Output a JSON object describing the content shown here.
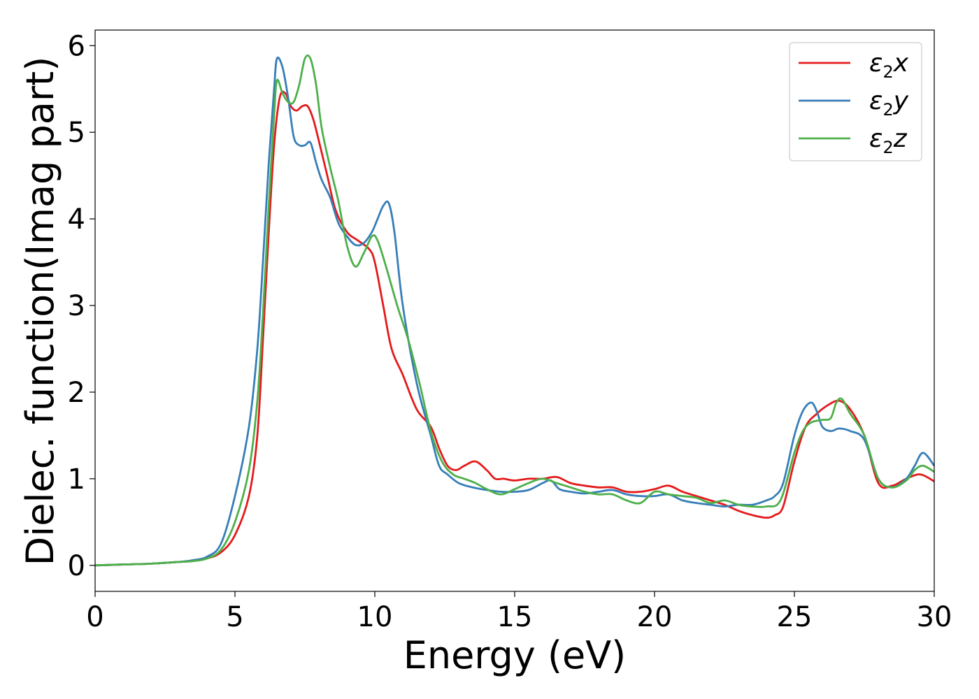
{
  "chart_data": {
    "type": "line",
    "title": "",
    "xlabel": "Energy (eV)",
    "ylabel": "Dielec. function(Imag part)",
    "xlim": [
      0,
      30
    ],
    "ylim": [
      -0.3,
      6.18
    ],
    "xticks": [
      "0",
      "5",
      "10",
      "15",
      "20",
      "25",
      "30"
    ],
    "yticks": [
      "0",
      "1",
      "2",
      "3",
      "4",
      "5",
      "6"
    ],
    "grid": false,
    "legend_position": "top-right",
    "series": [
      {
        "name": "ε2x",
        "legend_main": "ε",
        "legend_sub": "2",
        "legend_tail": "x",
        "color": "#e41a1c",
        "x": [
          0,
          1,
          2,
          3,
          3.5,
          4,
          4.5,
          5,
          5.5,
          5.8,
          6.0,
          6.2,
          6.4,
          6.6,
          6.8,
          7.0,
          7.2,
          7.4,
          7.6,
          7.8,
          8.0,
          8.3,
          8.6,
          9.0,
          9.4,
          9.8,
          10.0,
          10.3,
          10.6,
          11.0,
          11.5,
          12.0,
          12.3,
          12.6,
          12.9,
          13.2,
          13.6,
          14.0,
          14.3,
          14.6,
          15.0,
          15.5,
          16.0,
          16.5,
          17.0,
          17.5,
          18.0,
          18.5,
          19.0,
          19.5,
          20.0,
          20.5,
          21.0,
          21.5,
          22.0,
          22.5,
          23.0,
          23.5,
          24.0,
          24.3,
          24.6,
          25.0,
          25.4,
          25.8,
          26.2,
          26.6,
          27.0,
          27.5,
          28.0,
          28.5,
          29.0,
          29.5,
          30.0
        ],
        "y": [
          0.0,
          0.01,
          0.02,
          0.04,
          0.05,
          0.08,
          0.15,
          0.35,
          0.8,
          1.5,
          2.6,
          3.8,
          4.85,
          5.4,
          5.45,
          5.3,
          5.25,
          5.3,
          5.3,
          5.15,
          4.9,
          4.5,
          4.1,
          3.85,
          3.75,
          3.65,
          3.5,
          3.0,
          2.5,
          2.2,
          1.8,
          1.6,
          1.35,
          1.15,
          1.1,
          1.15,
          1.2,
          1.1,
          1.0,
          1.0,
          0.98,
          1.0,
          1.0,
          1.02,
          0.95,
          0.92,
          0.9,
          0.9,
          0.85,
          0.85,
          0.88,
          0.92,
          0.85,
          0.8,
          0.75,
          0.7,
          0.63,
          0.58,
          0.55,
          0.58,
          0.68,
          1.2,
          1.6,
          1.75,
          1.85,
          1.9,
          1.8,
          1.5,
          0.95,
          0.92,
          1.0,
          1.05,
          0.97
        ]
      },
      {
        "name": "ε2y",
        "legend_main": "ε",
        "legend_sub": "2",
        "legend_tail": "y",
        "color": "#377eb8",
        "x": [
          0,
          1,
          2,
          3,
          3.5,
          4,
          4.5,
          5,
          5.5,
          5.8,
          6.0,
          6.2,
          6.4,
          6.5,
          6.7,
          6.9,
          7.1,
          7.3,
          7.5,
          7.7,
          7.9,
          8.1,
          8.4,
          8.7,
          9.0,
          9.3,
          9.6,
          9.9,
          10.1,
          10.3,
          10.5,
          10.7,
          11.0,
          11.5,
          12.0,
          12.3,
          12.6,
          13.0,
          13.5,
          14.0,
          14.5,
          15.0,
          15.5,
          16.0,
          16.3,
          16.6,
          17.0,
          17.5,
          18.0,
          18.5,
          19.0,
          19.5,
          20.0,
          20.5,
          21.0,
          21.5,
          22.0,
          22.5,
          23.0,
          23.5,
          24.0,
          24.3,
          24.6,
          25.0,
          25.3,
          25.6,
          25.8,
          26.0,
          26.3,
          26.6,
          27.0,
          27.5,
          28.0,
          28.5,
          29.0,
          29.3,
          29.6,
          30.0
        ],
        "y": [
          0.0,
          0.01,
          0.02,
          0.04,
          0.06,
          0.1,
          0.25,
          0.8,
          1.6,
          2.5,
          3.5,
          4.6,
          5.5,
          5.85,
          5.75,
          5.4,
          4.95,
          4.85,
          4.85,
          4.88,
          4.65,
          4.45,
          4.25,
          3.95,
          3.8,
          3.7,
          3.72,
          3.85,
          4.0,
          4.15,
          4.18,
          3.85,
          3.0,
          2.1,
          1.5,
          1.15,
          1.05,
          0.95,
          0.9,
          0.87,
          0.85,
          0.85,
          0.87,
          0.95,
          0.98,
          0.88,
          0.85,
          0.83,
          0.85,
          0.87,
          0.82,
          0.8,
          0.8,
          0.82,
          0.75,
          0.72,
          0.7,
          0.68,
          0.7,
          0.7,
          0.75,
          0.8,
          0.95,
          1.5,
          1.78,
          1.88,
          1.78,
          1.6,
          1.55,
          1.58,
          1.55,
          1.45,
          1.0,
          0.9,
          1.0,
          1.15,
          1.3,
          1.15
        ]
      },
      {
        "name": "ε2z",
        "legend_main": "ε",
        "legend_sub": "2",
        "legend_tail": "z",
        "color": "#4daf4a",
        "x": [
          0,
          1,
          2,
          3,
          3.5,
          4,
          4.5,
          5,
          5.5,
          5.8,
          6.0,
          6.2,
          6.4,
          6.5,
          6.7,
          6.9,
          7.1,
          7.3,
          7.5,
          7.7,
          7.9,
          8.1,
          8.4,
          8.7,
          9.0,
          9.3,
          9.6,
          9.9,
          10.1,
          10.4,
          10.8,
          11.2,
          11.6,
          12.0,
          12.4,
          12.8,
          13.2,
          13.6,
          14.0,
          14.5,
          15.0,
          15.5,
          16.0,
          16.5,
          17.0,
          17.5,
          18.0,
          18.5,
          19.0,
          19.5,
          20.0,
          20.5,
          21.0,
          21.5,
          22.0,
          22.5,
          23.0,
          23.5,
          24.0,
          24.5,
          25.0,
          25.3,
          25.6,
          26.0,
          26.3,
          26.5,
          26.7,
          27.0,
          27.5,
          28.0,
          28.5,
          29.0,
          29.3,
          29.6,
          30.0
        ],
        "y": [
          0.0,
          0.01,
          0.02,
          0.04,
          0.05,
          0.08,
          0.18,
          0.5,
          1.1,
          1.9,
          2.9,
          4.1,
          5.2,
          5.6,
          5.45,
          5.35,
          5.35,
          5.55,
          5.85,
          5.85,
          5.55,
          5.05,
          4.6,
          4.2,
          3.7,
          3.45,
          3.6,
          3.8,
          3.75,
          3.45,
          3.0,
          2.6,
          2.1,
          1.55,
          1.2,
          1.05,
          1.0,
          0.95,
          0.88,
          0.82,
          0.88,
          0.95,
          1.0,
          0.95,
          0.9,
          0.85,
          0.82,
          0.82,
          0.75,
          0.72,
          0.85,
          0.82,
          0.8,
          0.78,
          0.72,
          0.75,
          0.7,
          0.68,
          0.68,
          0.75,
          1.3,
          1.55,
          1.65,
          1.68,
          1.7,
          1.88,
          1.92,
          1.75,
          1.5,
          1.0,
          0.9,
          0.98,
          1.1,
          1.15,
          1.08
        ]
      }
    ]
  }
}
